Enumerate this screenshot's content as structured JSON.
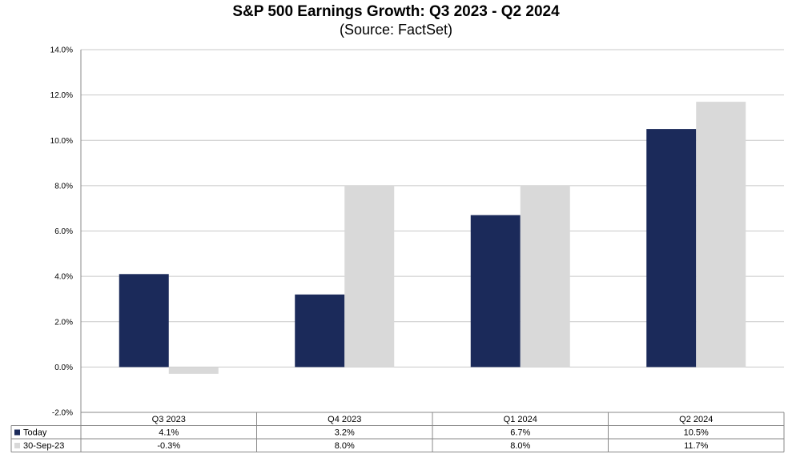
{
  "chart_data": {
    "type": "bar",
    "title": "S&P 500 Earnings Growth: Q3 2023 - Q2 2024",
    "subtitle": "(Source: FactSet)",
    "categories": [
      "Q3 2023",
      "Q4 2023",
      "Q1 2024",
      "Q2 2024"
    ],
    "series": [
      {
        "name": "Today",
        "values": [
          4.1,
          3.2,
          6.7,
          10.5
        ],
        "color": "#1b2a5a",
        "labels": [
          "4.1%",
          "3.2%",
          "6.7%",
          "10.5%"
        ]
      },
      {
        "name": "30-Sep-23",
        "values": [
          -0.3,
          8.0,
          8.0,
          11.7
        ],
        "color": "#d9d9d9",
        "labels": [
          "-0.3%",
          "8.0%",
          "8.0%",
          "11.7%"
        ]
      }
    ],
    "ylim": [
      -2.0,
      14.0
    ],
    "yticks": [
      -2.0,
      0.0,
      2.0,
      4.0,
      6.0,
      8.0,
      10.0,
      12.0,
      14.0
    ],
    "ytick_labels": [
      "-2.0%",
      "0.0%",
      "2.0%",
      "4.0%",
      "6.0%",
      "8.0%",
      "10.0%",
      "12.0%",
      "14.0%"
    ],
    "grid": true,
    "legend": "data-table-left"
  }
}
